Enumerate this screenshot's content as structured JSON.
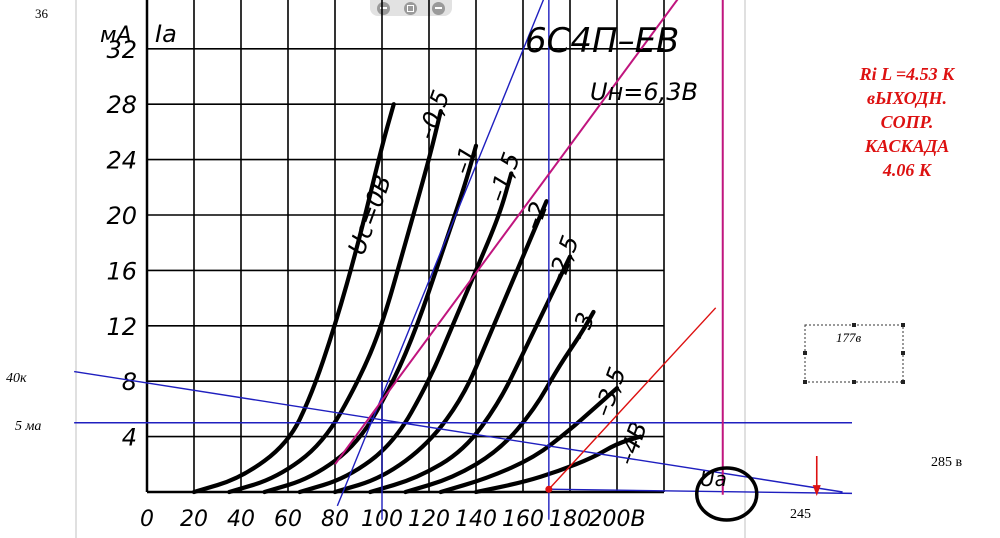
{
  "chart_data": {
    "type": "line",
    "title": "6С4П–ЕВ",
    "subtitle": "Uн=6,3В",
    "ylabel_unit": "мА",
    "ylabel": "Iа",
    "xlabel": "Uа",
    "x_ticks": [
      "0",
      "20",
      "40",
      "60",
      "80",
      "100",
      "120",
      "140",
      "160",
      "180",
      "200В"
    ],
    "y_ticks": [
      "4",
      "8",
      "12",
      "16",
      "20",
      "24",
      "28",
      "32"
    ],
    "xlim": [
      0,
      220
    ],
    "ylim": [
      0,
      36
    ],
    "grid": true,
    "curves": [
      {
        "label": "Uс=0В",
        "points": [
          [
            20,
            0
          ],
          [
            40,
            1
          ],
          [
            60,
            3.5
          ],
          [
            70,
            7
          ],
          [
            80,
            12
          ],
          [
            90,
            18
          ],
          [
            100,
            25
          ],
          [
            105,
            28
          ]
        ]
      },
      {
        "label": "–0,5",
        "points": [
          [
            35,
            0
          ],
          [
            55,
            1
          ],
          [
            75,
            3.5
          ],
          [
            90,
            8
          ],
          [
            100,
            12
          ],
          [
            110,
            18
          ],
          [
            120,
            24
          ],
          [
            125,
            27.5
          ]
        ]
      },
      {
        "label": "–1",
        "points": [
          [
            50,
            0
          ],
          [
            70,
            1
          ],
          [
            90,
            3.5
          ],
          [
            105,
            8
          ],
          [
            115,
            12
          ],
          [
            125,
            17
          ],
          [
            135,
            22
          ],
          [
            140,
            25
          ]
        ]
      },
      {
        "label": "–1,5",
        "points": [
          [
            65,
            0
          ],
          [
            85,
            1
          ],
          [
            105,
            3.5
          ],
          [
            120,
            8
          ],
          [
            130,
            12
          ],
          [
            140,
            16
          ],
          [
            150,
            20
          ],
          [
            155,
            23
          ]
        ]
      },
      {
        "label": "–2",
        "points": [
          [
            80,
            0
          ],
          [
            100,
            1
          ],
          [
            120,
            3.5
          ],
          [
            135,
            7
          ],
          [
            145,
            11
          ],
          [
            155,
            15
          ],
          [
            165,
            19
          ],
          [
            170,
            21
          ]
        ]
      },
      {
        "label": "–2,5",
        "points": [
          [
            95,
            0
          ],
          [
            115,
            1
          ],
          [
            135,
            3
          ],
          [
            150,
            6.5
          ],
          [
            160,
            10
          ],
          [
            170,
            13.5
          ],
          [
            180,
            17
          ]
        ]
      },
      {
        "label": "–3",
        "points": [
          [
            110,
            0
          ],
          [
            130,
            1
          ],
          [
            150,
            3
          ],
          [
            165,
            6
          ],
          [
            175,
            9
          ],
          [
            185,
            11.5
          ],
          [
            190,
            13
          ]
        ]
      },
      {
        "label": "–3,5",
        "points": [
          [
            125,
            0
          ],
          [
            145,
            1
          ],
          [
            165,
            2.5
          ],
          [
            180,
            4.5
          ],
          [
            190,
            6
          ],
          [
            200,
            7.5
          ]
        ]
      },
      {
        "label": "–4В",
        "points": [
          [
            140,
            0
          ],
          [
            160,
            0.7
          ],
          [
            175,
            1.5
          ],
          [
            190,
            2.5
          ],
          [
            200,
            3.5
          ],
          [
            210,
            4
          ]
        ]
      }
    ],
    "annotations": {
      "left_36": "36",
      "left_40k": "40к",
      "left_5ma": "5 ма",
      "right_285": "285 в",
      "bottom_245": "245",
      "callout_177": "177в",
      "ri_lines": [
        "Ri L =4.53 К",
        "вЫХОДН.",
        "СОПР.",
        "КАСКАДА",
        "4.06 К"
      ]
    },
    "overlay_lines": [
      {
        "name": "load-line-40k",
        "from": [
          -31,
          8.7
        ],
        "to": [
          296,
          0
        ]
      },
      {
        "name": "load-line-5ma-horizontal",
        "from": [
          -31,
          5
        ],
        "to": [
          300,
          5
        ]
      },
      {
        "name": "line-36-top",
        "from": [
          -31,
          36
        ],
        "to": [
          230,
          36
        ]
      },
      {
        "name": "baseline-285",
        "from": [
          171,
          0.2
        ],
        "to": [
          300,
          -0.1
        ]
      },
      {
        "name": "blue-tangent-line",
        "from": [
          81,
          -1
        ],
        "to": [
          171,
          36.5
        ]
      },
      {
        "name": "blue-vertical-100",
        "from": [
          100,
          8
        ],
        "to": [
          100,
          -2
        ]
      },
      {
        "name": "blue-vertical-171",
        "from": [
          171,
          37
        ],
        "to": [
          171,
          -2
        ]
      },
      {
        "name": "magenta-diagonal",
        "from": [
          80,
          2
        ],
        "to": [
          232,
          37
        ]
      },
      {
        "name": "magenta-vertical-245",
        "from": [
          245,
          36
        ],
        "to": [
          245,
          -0.2
        ]
      },
      {
        "name": "red-line-to-177",
        "from": [
          171,
          0.2
        ],
        "to": [
          242,
          13.3
        ]
      }
    ],
    "colors": {
      "curve": "#000000",
      "overlay_blue": "#1f1fbf",
      "magenta": "#c0157e",
      "red": "#dd1111"
    }
  }
}
